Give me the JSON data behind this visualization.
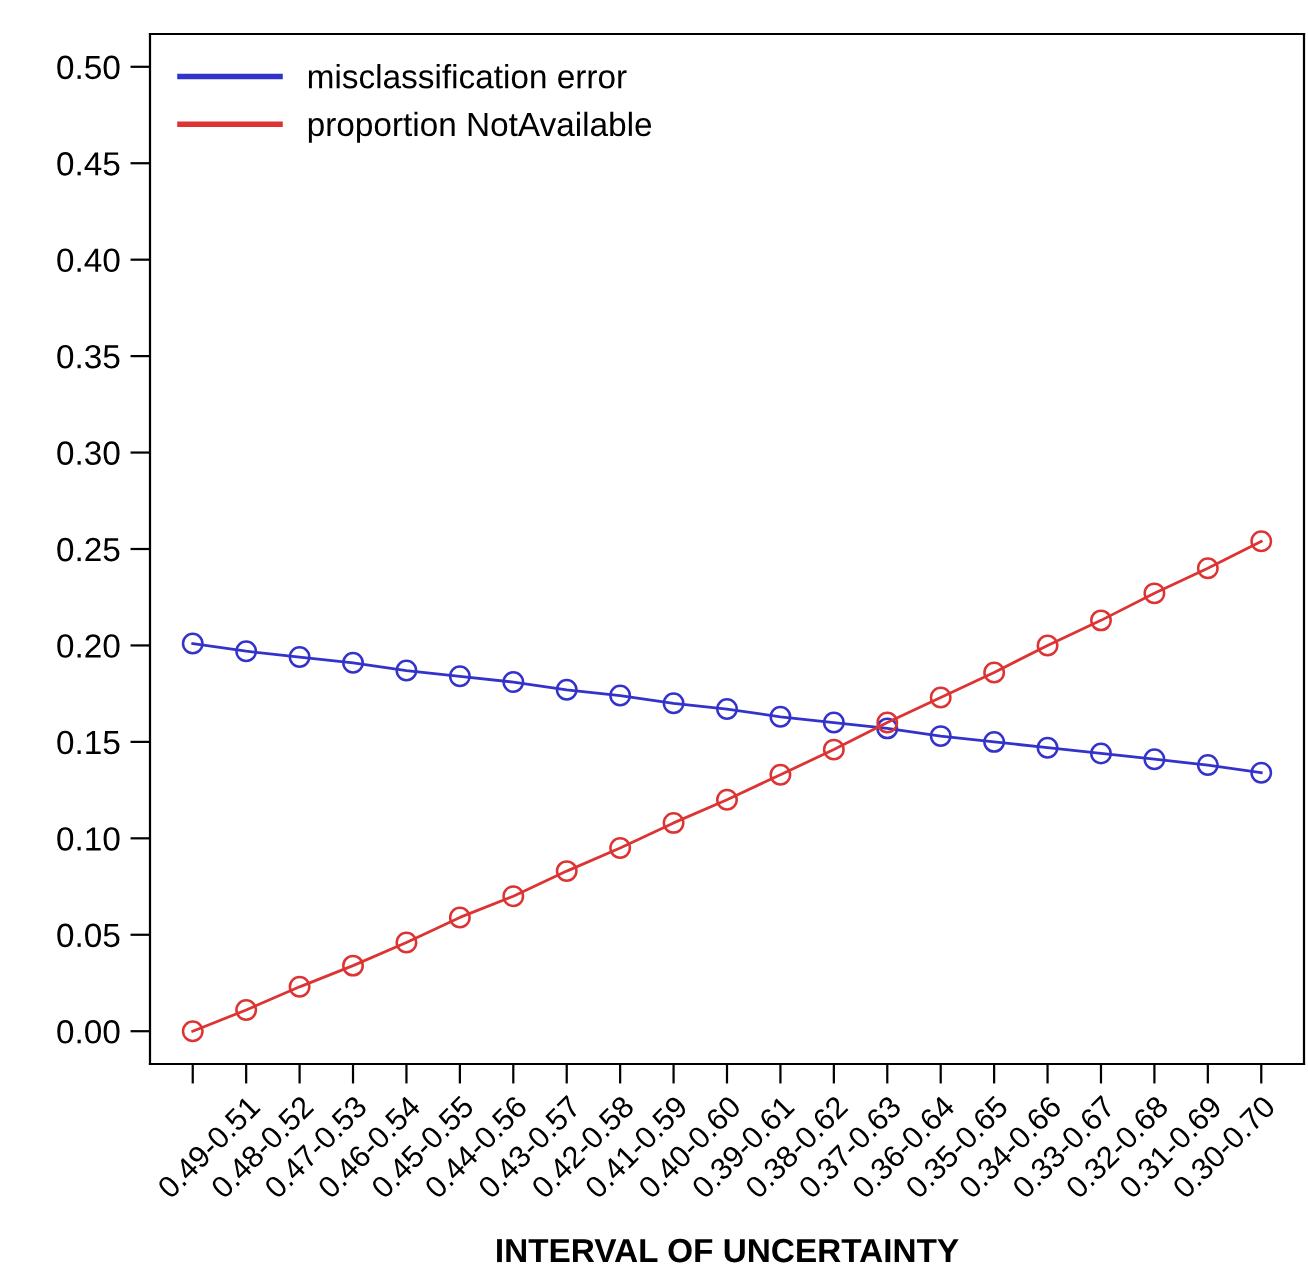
{
  "chart_data": {
    "type": "line",
    "xlabel": "INTERVAL OF UNCERTAINTY",
    "categories": [
      null,
      "0.49-0.51",
      "0.48-0.52",
      "0.47-0.53",
      "0.46-0.54",
      "0.45-0.55",
      "0.44-0.56",
      "0.43-0.57",
      "0.42-0.58",
      "0.41-0.59",
      "0.40-0.60",
      "0.39-0.61",
      "0.38-0.62",
      "0.37-0.63",
      "0.36-0.64",
      "0.35-0.65",
      "0.34-0.66",
      "0.33-0.67",
      "0.32-0.68",
      "0.31-0.69",
      "0.30-0.70"
    ],
    "series": [
      {
        "name": "misclassification error",
        "color": "#3333cc",
        "values": [
          0.201,
          0.197,
          0.194,
          0.191,
          0.187,
          0.184,
          0.181,
          0.177,
          0.174,
          0.17,
          0.167,
          0.163,
          0.16,
          0.157,
          0.153,
          0.15,
          0.147,
          0.144,
          0.141,
          0.138,
          0.134
        ]
      },
      {
        "name": "proportion NotAvailable",
        "color": "#dd3333",
        "values": [
          0.0,
          0.011,
          0.023,
          0.034,
          0.046,
          0.059,
          0.07,
          0.083,
          0.095,
          0.108,
          0.12,
          0.133,
          0.146,
          0.16,
          0.173,
          0.186,
          0.2,
          0.213,
          0.227,
          0.24,
          0.254
        ]
      }
    ],
    "ylim": [
      -0.017,
      0.517
    ],
    "yticks": [
      {
        "value": 0,
        "label": "0.00"
      },
      {
        "value": 0.05,
        "label": "0.05"
      },
      {
        "value": 0.1,
        "label": "0.10"
      },
      {
        "value": 0.15,
        "label": "0.15"
      },
      {
        "value": 0.2,
        "label": "0.20"
      },
      {
        "value": 0.25,
        "label": "0.25"
      },
      {
        "value": 0.3,
        "label": "0.30"
      },
      {
        "value": 0.35,
        "label": "0.35"
      },
      {
        "value": 0.4,
        "label": "0.40"
      },
      {
        "value": 0.45,
        "label": "0.45"
      },
      {
        "value": 0.5,
        "label": "0.50"
      }
    ],
    "grid": false,
    "legend": "top left",
    "marker": "circle",
    "line_style": "solid"
  }
}
